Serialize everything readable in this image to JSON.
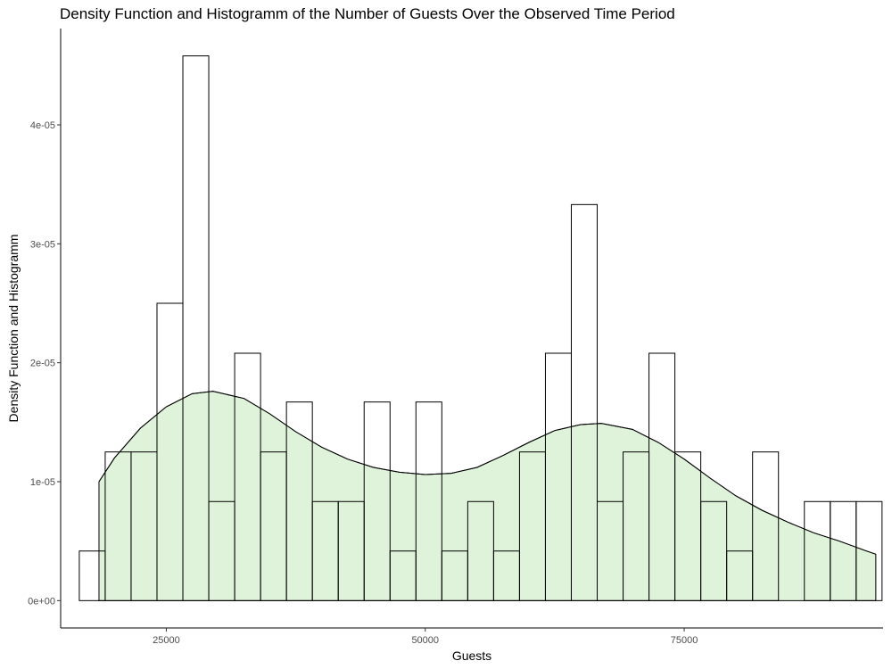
{
  "chart_data": {
    "type": "bar",
    "title": "Density Function and Histogramm of the Number of Guests Over the Observed Time Period",
    "xlabel": "Guests",
    "ylabel": "Density Function and Histogramm",
    "xlim": [
      14800,
      94200
    ],
    "ylim": [
      -2.3e-06,
      4.81e-05
    ],
    "x_ticks": [
      25000,
      50000,
      75000
    ],
    "x_tick_labels": [
      "25000",
      "50000",
      "75000"
    ],
    "y_ticks": [
      0,
      1e-05,
      2e-05,
      3e-05,
      4e-05
    ],
    "y_tick_labels": [
      "0e+00",
      "1e-05",
      "2e-05",
      "3e-05",
      "4e-05"
    ],
    "grid": false,
    "legend": "none",
    "histogram": {
      "bin_start": 16600,
      "bin_width": 2500,
      "values": [
        4.17e-06,
        1.25e-05,
        1.25e-05,
        2.5e-05,
        4.58e-05,
        8.33e-06,
        2.08e-05,
        1.25e-05,
        1.67e-05,
        8.33e-06,
        8.33e-06,
        1.67e-05,
        4.17e-06,
        1.67e-05,
        4.17e-06,
        8.33e-06,
        4.17e-06,
        1.25e-05,
        2.08e-05,
        3.33e-05,
        8.33e-06,
        1.25e-05,
        2.08e-05,
        1.25e-05,
        8.33e-06,
        4.17e-06,
        1.25e-05,
        0,
        8.33e-06,
        8.33e-06,
        8.33e-06,
        0
      ]
    },
    "density": {
      "x": [
        18500,
        20000,
        22500,
        25000,
        27500,
        29500,
        32500,
        35000,
        37500,
        40000,
        42500,
        45000,
        47500,
        50000,
        52500,
        55000,
        57500,
        60000,
        62500,
        65000,
        67000,
        70000,
        72500,
        75000,
        77500,
        80000,
        82500,
        85000,
        87500,
        90000,
        92500,
        93500
      ],
      "y": [
        1e-05,
        1.2e-05,
        1.45e-05,
        1.63e-05,
        1.74e-05,
        1.76e-05,
        1.7e-05,
        1.57e-05,
        1.42e-05,
        1.29e-05,
        1.19e-05,
        1.12e-05,
        1.08e-05,
        1.06e-05,
        1.07e-05,
        1.12e-05,
        1.22e-05,
        1.33e-05,
        1.43e-05,
        1.48e-05,
        1.49e-05,
        1.44e-05,
        1.33e-05,
        1.19e-05,
        1.03e-05,
        8.8e-06,
        7.6e-06,
        6.6e-06,
        5.7e-06,
        5e-06,
        4.2e-06,
        3.9e-06
      ]
    },
    "colors": {
      "density_fill": "#dff3da",
      "line": "#000000",
      "bar_fill": "none",
      "tick_label": "#4d4d4d",
      "axis": "#000000",
      "background": "#ffffff"
    }
  }
}
